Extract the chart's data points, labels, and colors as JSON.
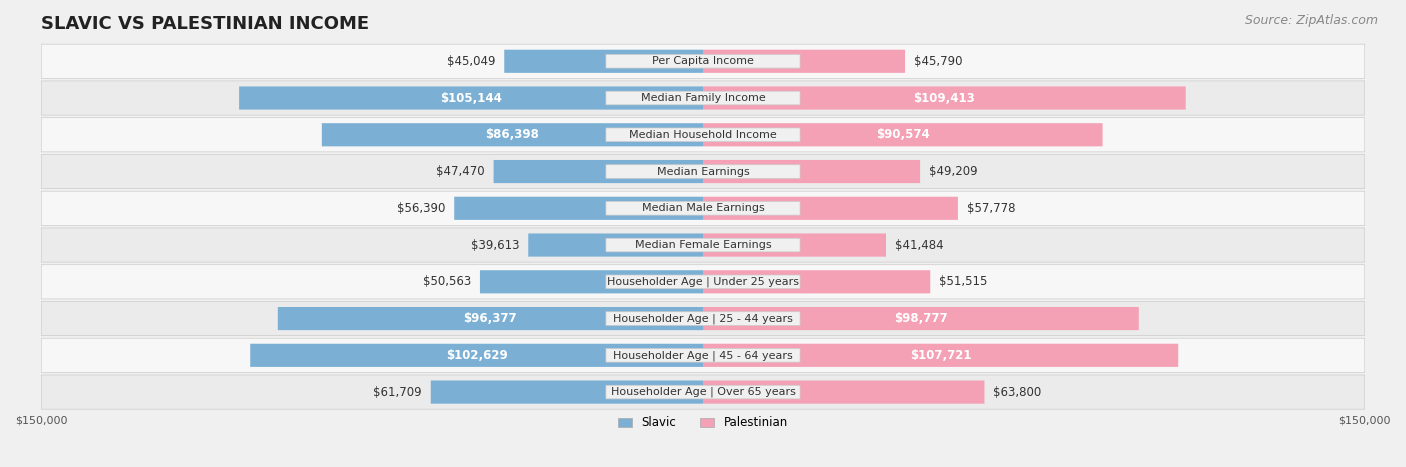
{
  "title": "SLAVIC VS PALESTINIAN INCOME",
  "source": "Source: ZipAtlas.com",
  "categories": [
    "Per Capita Income",
    "Median Family Income",
    "Median Household Income",
    "Median Earnings",
    "Median Male Earnings",
    "Median Female Earnings",
    "Householder Age | Under 25 years",
    "Householder Age | 25 - 44 years",
    "Householder Age | 45 - 64 years",
    "Householder Age | Over 65 years"
  ],
  "slavic_values": [
    45049,
    105144,
    86398,
    47470,
    56390,
    39613,
    50563,
    96377,
    102629,
    61709
  ],
  "palestinian_values": [
    45790,
    109413,
    90574,
    49209,
    57778,
    41484,
    51515,
    98777,
    107721,
    63800
  ],
  "slavic_color": "#7bafd4",
  "slavic_color_dark": "#5b8fbf",
  "palestinian_color": "#f4a0b5",
  "palestinian_color_dark": "#e8607f",
  "max_value": 150000,
  "bg_color": "#f0f0f0",
  "row_bg": "#f7f7f7",
  "row_bg_alt": "#ebebeb",
  "label_bg": "#f0f0f0",
  "title_fontsize": 13,
  "source_fontsize": 9,
  "bar_label_fontsize": 8.5,
  "category_fontsize": 8,
  "axis_label_fontsize": 8
}
